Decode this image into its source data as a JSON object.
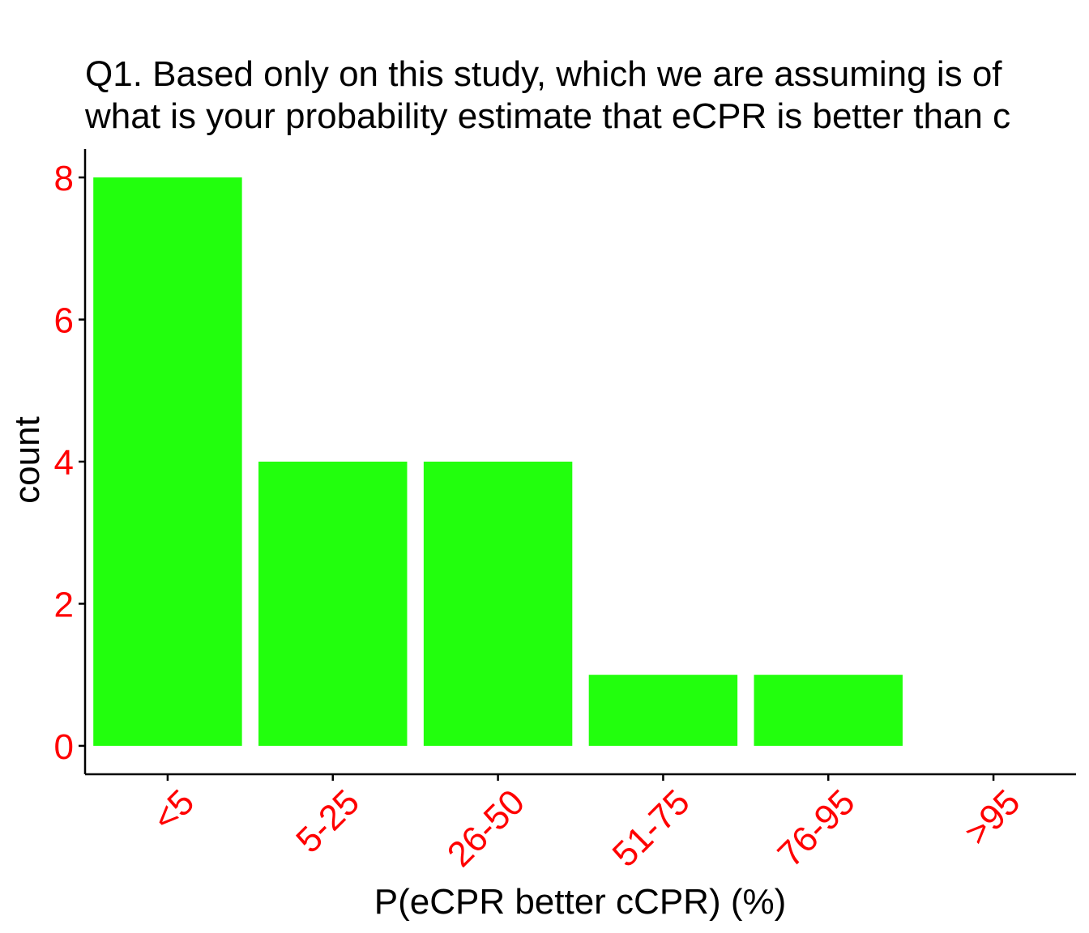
{
  "chart_data": {
    "type": "bar",
    "title_lines": [
      "Q1. Based only on this study, which we are assuming is of",
      "what is your probability estimate that eCPR is better than c"
    ],
    "xlabel": "P(eCPR better cCPR) (%)",
    "ylabel": "count",
    "categories": [
      "<5",
      "5-25",
      "26-50",
      "51-75",
      "76-95",
      ">95"
    ],
    "values": [
      8,
      4,
      4,
      1,
      1,
      0
    ],
    "ylim": [
      -0.4,
      8.4
    ],
    "yticks": [
      0,
      2,
      4,
      6,
      8
    ],
    "grid": false,
    "legend": "none",
    "colors": {
      "bar": "#22ff0d",
      "tick_labels": "#ff0000",
      "axis_line": "#000000",
      "text": "#000000"
    }
  }
}
